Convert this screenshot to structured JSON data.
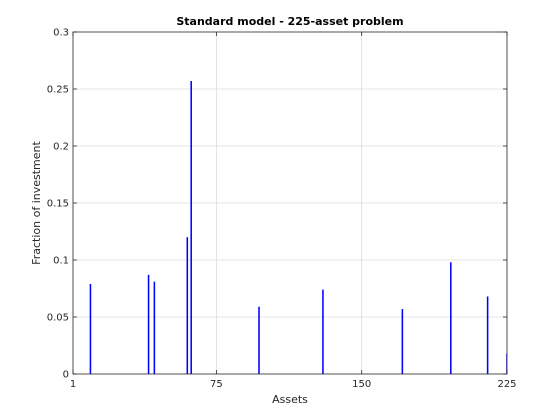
{
  "chart_data": {
    "type": "bar",
    "title": "Standard model - 225-asset problem",
    "xlabel": "Assets",
    "ylabel": "Fraction of investment",
    "xlim": [
      1,
      225
    ],
    "ylim": [
      0,
      0.3
    ],
    "xticks": [
      1,
      75,
      150,
      225
    ],
    "xtick_labels": [
      "1",
      "75",
      "150",
      "225"
    ],
    "yticks": [
      0,
      0.05,
      0.1,
      0.15,
      0.2,
      0.25,
      0.3
    ],
    "ytick_labels": [
      "0",
      "0.05",
      "0.1",
      "0.15",
      "0.2",
      "0.25",
      "0.3"
    ],
    "grid": true,
    "bar_color": "#0000ff",
    "x": [
      10,
      40,
      43,
      60,
      62,
      97,
      130,
      171,
      196,
      215,
      225
    ],
    "values": [
      0.079,
      0.087,
      0.081,
      0.12,
      0.257,
      0.059,
      0.074,
      0.057,
      0.098,
      0.068,
      0.018
    ]
  }
}
